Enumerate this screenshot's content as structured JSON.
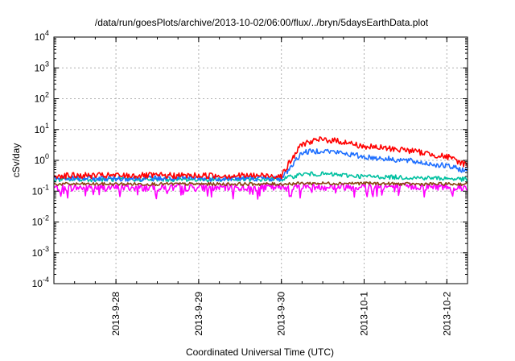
{
  "chart_data": {
    "type": "line",
    "title": "/data/run/goesPlots/archive/2013-10-02/06:00/flux/../bryn/5daysEarthData.plot",
    "xlabel": "Coordinated Universal Time (UTC)",
    "ylabel": "cSv/day",
    "y_scale": "log",
    "ylim": [
      0.0001,
      10000
    ],
    "y_ticks": [
      {
        "value": 0.0001,
        "base": "10",
        "exp": "-4"
      },
      {
        "value": 0.001,
        "base": "10",
        "exp": "-3"
      },
      {
        "value": 0.01,
        "base": "10",
        "exp": "-2"
      },
      {
        "value": 0.1,
        "base": "10",
        "exp": "-1"
      },
      {
        "value": 1,
        "base": "10",
        "exp": "0"
      },
      {
        "value": 10,
        "base": "10",
        "exp": "1"
      },
      {
        "value": 100,
        "base": "10",
        "exp": "2"
      },
      {
        "value": 1000,
        "base": "10",
        "exp": "3"
      },
      {
        "value": 10000,
        "base": "10",
        "exp": "4"
      }
    ],
    "xlim": [
      "2013-09-27T06:00",
      "2013-10-02T06:00"
    ],
    "x_ticks": [
      {
        "value": "2013-09-28T00:00",
        "label": "2013-9-28"
      },
      {
        "value": "2013-09-29T00:00",
        "label": "2013-9-29"
      },
      {
        "value": "2013-09-30T00:00",
        "label": "2013-9-30"
      },
      {
        "value": "2013-10-01T00:00",
        "label": "2013-10-1"
      },
      {
        "value": "2013-10-02T00:00",
        "label": "2013-10-2"
      }
    ],
    "grid": true,
    "legend": "none",
    "x": [
      "2013-09-27T06:00",
      "2013-09-28T00:00",
      "2013-09-29T00:00",
      "2013-09-30T00:00",
      "2013-09-30T06:00",
      "2013-09-30T12:00",
      "2013-09-30T18:00",
      "2013-10-01T00:00",
      "2013-10-01T12:00",
      "2013-10-02T00:00",
      "2013-10-02T06:00"
    ],
    "series": [
      {
        "color": "#ff0000",
        "values": [
          0.32,
          0.32,
          0.32,
          0.32,
          3.5,
          4.8,
          4.0,
          2.8,
          2.2,
          1.3,
          0.7
        ]
      },
      {
        "color": "#1e6fff",
        "values": [
          0.26,
          0.26,
          0.26,
          0.26,
          1.8,
          2.1,
          1.7,
          1.3,
          1.0,
          0.65,
          0.45
        ]
      },
      {
        "color": "#00c0a0",
        "values": [
          0.24,
          0.24,
          0.24,
          0.24,
          0.36,
          0.36,
          0.33,
          0.3,
          0.28,
          0.26,
          0.24
        ]
      },
      {
        "color": "#8b4513",
        "values": [
          0.17,
          0.17,
          0.17,
          0.17,
          0.18,
          0.18,
          0.18,
          0.18,
          0.17,
          0.17,
          0.17
        ]
      },
      {
        "color": "#ff00ff",
        "values": [
          0.13,
          0.13,
          0.13,
          0.13,
          0.14,
          0.14,
          0.14,
          0.14,
          0.14,
          0.14,
          0.13
        ]
      }
    ]
  }
}
